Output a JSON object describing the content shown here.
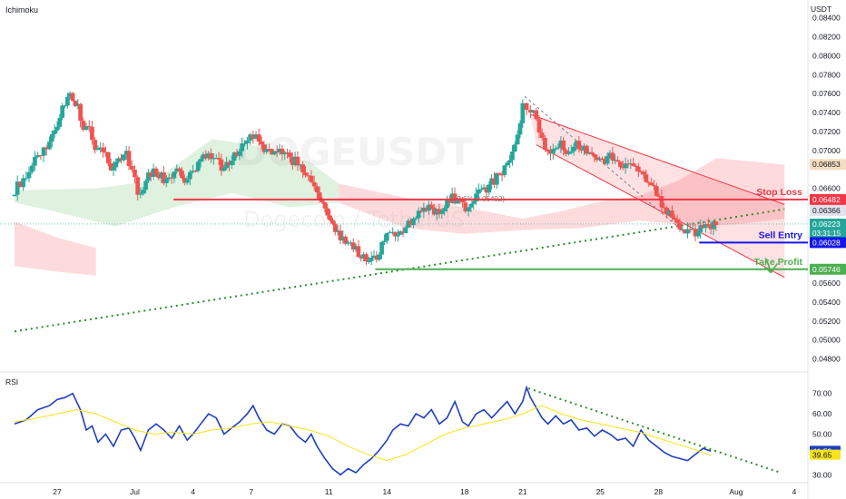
{
  "header": {
    "indicator_label": "Ichimoku",
    "currency_label": "USDT"
  },
  "watermark": {
    "symbol": "DOGEUSDT",
    "name": "Dogecoin / TetherUS"
  },
  "colors": {
    "up": "#26a69a",
    "down": "#ef5350",
    "cloud_green": "#4caf50",
    "cloud_red": "#f23645",
    "stop_loss": "#f23645",
    "sell_entry": "#1515e8",
    "take_profit": "#4caf50",
    "rsi_line": "#1f3fbf",
    "rsi_ma": "#f5e31b",
    "trend_dots": "#2e8b2e",
    "channel": "#f23645"
  },
  "chart_data": [
    {
      "type": "candlestick",
      "symbol": "DOGEUSDT",
      "ylabel": "USDT",
      "ylim": [
        0.047,
        0.0855
      ],
      "ytick_labels": [
        "0.08400",
        "0.08200",
        "0.08000",
        "0.07800",
        "0.07600",
        "0.07400",
        "0.07200",
        "0.07000",
        "0.06600",
        "0.05600",
        "0.05400",
        "0.05200",
        "0.05000",
        "0.04800"
      ],
      "ytick_values": [
        0.084,
        0.082,
        0.08,
        0.078,
        0.076,
        0.074,
        0.072,
        0.07,
        0.066,
        0.056,
        0.054,
        0.052,
        0.05,
        0.048
      ],
      "x_tick_labels": [
        "27",
        "Jul",
        "4",
        "7",
        "11",
        "14",
        "18",
        "21",
        "25",
        "28",
        "Aug",
        "4"
      ],
      "x_tick_days": [
        0,
        4,
        7,
        10,
        14,
        17,
        21,
        24,
        28,
        31,
        35,
        38
      ],
      "price_series": [
        {
          "day": -2.2,
          "v": 0.0655
        },
        {
          "day": -1.6,
          "v": 0.067
        },
        {
          "day": -1.0,
          "v": 0.0688
        },
        {
          "day": -0.4,
          "v": 0.0702
        },
        {
          "day": 0.0,
          "v": 0.0722
        },
        {
          "day": 0.4,
          "v": 0.0742
        },
        {
          "day": 0.8,
          "v": 0.0756
        },
        {
          "day": 1.2,
          "v": 0.0747
        },
        {
          "day": 1.5,
          "v": 0.0724
        },
        {
          "day": 1.8,
          "v": 0.0728
        },
        {
          "day": 2.1,
          "v": 0.0705
        },
        {
          "day": 2.5,
          "v": 0.0702
        },
        {
          "day": 2.9,
          "v": 0.0684
        },
        {
          "day": 3.3,
          "v": 0.0692
        },
        {
          "day": 3.7,
          "v": 0.0697
        },
        {
          "day": 4.0,
          "v": 0.068
        },
        {
          "day": 4.3,
          "v": 0.0655
        },
        {
          "day": 4.7,
          "v": 0.0668
        },
        {
          "day": 5.1,
          "v": 0.0678
        },
        {
          "day": 5.5,
          "v": 0.0672
        },
        {
          "day": 5.9,
          "v": 0.0668
        },
        {
          "day": 6.3,
          "v": 0.0678
        },
        {
          "day": 6.7,
          "v": 0.0666
        },
        {
          "day": 7.0,
          "v": 0.0673
        },
        {
          "day": 7.4,
          "v": 0.0688
        },
        {
          "day": 7.8,
          "v": 0.0697
        },
        {
          "day": 8.2,
          "v": 0.0693
        },
        {
          "day": 8.6,
          "v": 0.0684
        },
        {
          "day": 9.0,
          "v": 0.0688
        },
        {
          "day": 9.4,
          "v": 0.0698
        },
        {
          "day": 9.8,
          "v": 0.0706
        },
        {
          "day": 10.1,
          "v": 0.072
        },
        {
          "day": 10.4,
          "v": 0.0713
        },
        {
          "day": 10.8,
          "v": 0.0703
        },
        {
          "day": 11.2,
          "v": 0.0697
        },
        {
          "day": 11.6,
          "v": 0.07
        },
        {
          "day": 12.0,
          "v": 0.0693
        },
        {
          "day": 12.4,
          "v": 0.0688
        },
        {
          "day": 12.8,
          "v": 0.0682
        },
        {
          "day": 13.1,
          "v": 0.0676
        },
        {
          "day": 13.4,
          "v": 0.0662
        },
        {
          "day": 13.8,
          "v": 0.0647
        },
        {
          "day": 14.2,
          "v": 0.0628
        },
        {
          "day": 14.6,
          "v": 0.061
        },
        {
          "day": 15.0,
          "v": 0.0602
        },
        {
          "day": 15.4,
          "v": 0.0596
        },
        {
          "day": 15.8,
          "v": 0.059
        },
        {
          "day": 16.2,
          "v": 0.0582
        },
        {
          "day": 16.6,
          "v": 0.0586
        },
        {
          "day": 17.0,
          "v": 0.0604
        },
        {
          "day": 17.3,
          "v": 0.0614
        },
        {
          "day": 17.7,
          "v": 0.0608
        },
        {
          "day": 18.1,
          "v": 0.062
        },
        {
          "day": 18.5,
          "v": 0.0628
        },
        {
          "day": 18.9,
          "v": 0.0634
        },
        {
          "day": 19.3,
          "v": 0.0638
        },
        {
          "day": 19.7,
          "v": 0.0633
        },
        {
          "day": 20.1,
          "v": 0.0642
        },
        {
          "day": 20.5,
          "v": 0.0652
        },
        {
          "day": 20.9,
          "v": 0.0644
        },
        {
          "day": 21.2,
          "v": 0.0638
        },
        {
          "day": 21.6,
          "v": 0.0648
        },
        {
          "day": 22.0,
          "v": 0.0656
        },
        {
          "day": 22.4,
          "v": 0.0663
        },
        {
          "day": 22.8,
          "v": 0.0672
        },
        {
          "day": 23.2,
          "v": 0.0682
        },
        {
          "day": 23.6,
          "v": 0.0698
        },
        {
          "day": 24.0,
          "v": 0.0724
        },
        {
          "day": 24.2,
          "v": 0.0748
        },
        {
          "day": 24.4,
          "v": 0.0742
        },
        {
          "day": 24.7,
          "v": 0.0738
        },
        {
          "day": 25.0,
          "v": 0.0722
        },
        {
          "day": 25.3,
          "v": 0.0703
        },
        {
          "day": 25.7,
          "v": 0.0698
        },
        {
          "day": 26.1,
          "v": 0.0706
        },
        {
          "day": 26.5,
          "v": 0.0698
        },
        {
          "day": 26.9,
          "v": 0.0708
        },
        {
          "day": 27.3,
          "v": 0.0703
        },
        {
          "day": 27.7,
          "v": 0.0698
        },
        {
          "day": 28.1,
          "v": 0.0688
        },
        {
          "day": 28.5,
          "v": 0.0693
        },
        {
          "day": 28.9,
          "v": 0.0691
        },
        {
          "day": 29.3,
          "v": 0.0684
        },
        {
          "day": 29.7,
          "v": 0.0687
        },
        {
          "day": 30.1,
          "v": 0.0682
        },
        {
          "day": 30.5,
          "v": 0.0663
        },
        {
          "day": 30.9,
          "v": 0.0658
        },
        {
          "day": 31.3,
          "v": 0.0642
        },
        {
          "day": 31.7,
          "v": 0.0632
        },
        {
          "day": 32.1,
          "v": 0.0624
        },
        {
          "day": 32.5,
          "v": 0.0616
        },
        {
          "day": 32.9,
          "v": 0.0612
        },
        {
          "day": 33.3,
          "v": 0.0618
        },
        {
          "day": 33.7,
          "v": 0.0622
        }
      ],
      "cloud_bands": [
        {
          "color": "green",
          "upper": [
            [
              -2.2,
              0.0658
            ],
            [
              2,
              0.066
            ],
            [
              5,
              0.0668
            ],
            [
              8,
              0.0712
            ],
            [
              10,
              0.0706
            ],
            [
              13,
              0.0688
            ],
            [
              14.5,
              0.0665
            ]
          ],
          "lower": [
            [
              14.5,
              0.0645
            ],
            [
              12,
              0.064
            ],
            [
              9,
              0.0655
            ],
            [
              6,
              0.064
            ],
            [
              3,
              0.062
            ],
            [
              0,
              0.0635
            ],
            [
              -2.2,
              0.0645
            ]
          ]
        },
        {
          "color": "red",
          "upper": [
            [
              14.5,
              0.0665
            ],
            [
              18,
              0.065
            ],
            [
              21,
              0.064
            ],
            [
              24,
              0.0628
            ],
            [
              26,
              0.0636
            ],
            [
              28,
              0.0646
            ],
            [
              30,
              0.0652
            ],
            [
              32,
              0.0668
            ],
            [
              34,
              0.0692
            ],
            [
              36,
              0.0688
            ],
            [
              37.5,
              0.0685
            ]
          ],
          "lower": [
            [
              37.5,
              0.0628
            ],
            [
              35,
              0.0622
            ],
            [
              33,
              0.062
            ],
            [
              30,
              0.0626
            ],
            [
              27,
              0.0618
            ],
            [
              24,
              0.0616
            ],
            [
              21,
              0.0612
            ],
            [
              18,
              0.0618
            ],
            [
              14.5,
              0.0645
            ]
          ]
        },
        {
          "color": "red",
          "upper": [
            [
              -2.2,
              0.0625
            ],
            [
              0,
              0.0608
            ],
            [
              2,
              0.0597
            ]
          ],
          "lower": [
            [
              2,
              0.0568
            ],
            [
              0,
              0.0572
            ],
            [
              -2.2,
              0.0578
            ]
          ]
        }
      ],
      "ichimoku_flag": true,
      "levels": {
        "stop_loss": {
          "label": "Stop Loss",
          "value": 0.06482,
          "price_label": "0.06482",
          "from_day": 6
        },
        "sell_entry": {
          "label": "Sell Entry",
          "value": 0.06028,
          "price_label": "0.06028",
          "from_day": 33.1
        },
        "take_profit": {
          "label": "Take Profit",
          "value": 0.05746,
          "price_label": "0.05746",
          "from_day": 16.4
        }
      },
      "price_tags": [
        {
          "value": 0.06853,
          "text": "0.06853",
          "style": "orange"
        },
        {
          "value": 0.06366,
          "text": "0.06366",
          "style": "gray"
        },
        {
          "value": 0.06223,
          "text": "0.06223",
          "sub": "03:31:15",
          "style": "green"
        }
      ],
      "fib_annotation": {
        "text": "23.6%(0.06492)",
        "day": 20.5,
        "value": 0.06492
      },
      "trendline_dotted": {
        "from": [
          -2.2,
          0.0509
        ],
        "to": [
          37.5,
          0.0638
        ]
      },
      "channel": {
        "upper": [
          [
            24.4,
            0.0738
          ],
          [
            37.5,
            0.0643
          ]
        ],
        "lower": [
          [
            24.7,
            0.0706
          ],
          [
            37.5,
            0.0566
          ]
        ]
      },
      "channel_diagonal": {
        "from": [
          24.1,
          0.0757
        ],
        "to": [
          32.2,
          0.0616
        ]
      },
      "arrow_hint": {
        "day": 36.8,
        "value": 0.0574
      }
    },
    {
      "type": "line",
      "title": "RSI",
      "ylim": [
        27,
        77
      ],
      "ytick_labels": [
        "70.00",
        "60.00",
        "50.00",
        "40.00",
        "30.00"
      ],
      "ytick_values": [
        70,
        60,
        50,
        40,
        30
      ],
      "series": [
        {
          "name": "",
          "role": "rsi",
          "x": [
            -2.2,
            -1.6,
            -1.0,
            -0.4,
            0.0,
            0.4,
            0.8,
            1.2,
            1.5,
            1.8,
            2.1,
            2.5,
            2.9,
            3.3,
            3.7,
            4.0,
            4.3,
            4.7,
            5.1,
            5.5,
            5.9,
            6.3,
            6.7,
            7.0,
            7.4,
            7.8,
            8.2,
            8.6,
            9.0,
            9.4,
            9.8,
            10.1,
            10.4,
            10.8,
            11.2,
            11.6,
            12.0,
            12.4,
            12.8,
            13.1,
            13.4,
            13.8,
            14.2,
            14.6,
            15.0,
            15.4,
            15.8,
            16.2,
            16.6,
            17.0,
            17.3,
            17.7,
            18.1,
            18.5,
            18.9,
            19.3,
            19.7,
            20.1,
            20.5,
            20.9,
            21.2,
            21.6,
            22.0,
            22.4,
            22.8,
            23.2,
            23.6,
            24.0,
            24.2,
            24.4,
            24.7,
            25.0,
            25.3,
            25.7,
            26.1,
            26.5,
            26.9,
            27.3,
            27.7,
            28.1,
            28.5,
            28.9,
            29.3,
            29.7,
            30.1,
            30.5,
            30.9,
            31.3,
            31.7,
            32.1,
            32.5,
            32.9,
            33.3,
            33.7
          ],
          "values": [
            55,
            57,
            62,
            64,
            67,
            68,
            70,
            62,
            52,
            54,
            46,
            50,
            44,
            52,
            53,
            48,
            42,
            52,
            55,
            52,
            48,
            54,
            47,
            50,
            55,
            60,
            58,
            50,
            53,
            56,
            60,
            64,
            58,
            52,
            50,
            55,
            54,
            49,
            46,
            50,
            44,
            38,
            33,
            30,
            33,
            31,
            35,
            38,
            42,
            47,
            52,
            55,
            54,
            60,
            58,
            62,
            55,
            58,
            66,
            56,
            54,
            60,
            62,
            58,
            62,
            66,
            60,
            66,
            73,
            68,
            63,
            58,
            55,
            59,
            55,
            57,
            52,
            53,
            49,
            52,
            50,
            47,
            48,
            44,
            52,
            47,
            44,
            41,
            39,
            38,
            37,
            40,
            43,
            41.59
          ]
        },
        {
          "name": "",
          "role": "ma",
          "x": [
            -2.2,
            -1.0,
            0.0,
            1.0,
            2.0,
            3.0,
            4.0,
            5.0,
            6.0,
            7.0,
            8.0,
            9.0,
            10.0,
            11.0,
            12.0,
            13.0,
            14.0,
            15.0,
            16.0,
            17.0,
            18.0,
            19.0,
            20.0,
            21.0,
            22.0,
            23.0,
            24.0,
            25.0,
            26.0,
            27.0,
            28.0,
            29.0,
            30.0,
            31.0,
            32.0,
            33.0,
            33.7
          ],
          "values": [
            56,
            58,
            60,
            62,
            60,
            56,
            52,
            50,
            51,
            50,
            52,
            53,
            55,
            56,
            54,
            52,
            49,
            44,
            40,
            37,
            40,
            45,
            50,
            53,
            55,
            57,
            60,
            64,
            60,
            57,
            55,
            53,
            51,
            48,
            45,
            42,
            39.65
          ]
        }
      ],
      "value_tags": [
        {
          "value": 41.59,
          "text": "41.59",
          "style": "blue"
        },
        {
          "value": 39.65,
          "text": "39.65",
          "style": "yellow"
        }
      ],
      "trendline_dotted": {
        "from": [
          24.3,
          72.5
        ],
        "to": [
          37.3,
          31
        ]
      }
    }
  ]
}
